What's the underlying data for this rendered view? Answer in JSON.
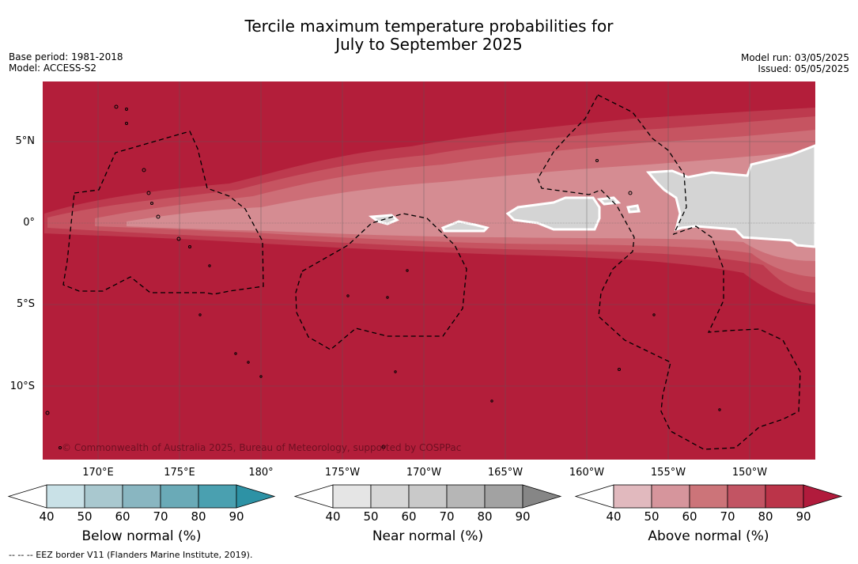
{
  "title": {
    "line1": "Tercile maximum temperature probabilities for",
    "line2": "July to September 2025"
  },
  "meta": {
    "base_period": "Base period: 1981-2018",
    "model": "Model: ACCESS-S2",
    "model_run": "Model run: 03/05/2025",
    "issued": "Issued: 05/05/2025"
  },
  "map": {
    "lat_labels": [
      "5°N",
      "0°",
      "5°S",
      "10°S"
    ],
    "lon_labels": [
      "170°E",
      "175°E",
      "180°",
      "175°W",
      "170°W",
      "165°W",
      "160°W",
      "155°W",
      "150°W"
    ],
    "copyright": "© Commonwealth of Australia 2025, Bureau of Meteorology, supported by COSPPac",
    "colors": {
      "above_90": "#b31e3a",
      "above_80": "#bd3a4e",
      "above_70": "#c65461",
      "above_60": "#cd6e77",
      "above_50": "#d58c92",
      "near_normal": "#d4d4d4"
    }
  },
  "colorbars": [
    {
      "label": "Below normal (%)",
      "ticks": [
        "40",
        "50",
        "60",
        "70",
        "80",
        "90"
      ],
      "colors": [
        "#ffffff",
        "#c9e1e7",
        "#a9c8cf",
        "#89b6c1",
        "#6aaab7",
        "#4aa0b0",
        "#2d92a5"
      ]
    },
    {
      "label": "Near normal (%)",
      "ticks": [
        "40",
        "50",
        "60",
        "70",
        "80",
        "90"
      ],
      "colors": [
        "#ffffff",
        "#e5e5e5",
        "#d6d6d6",
        "#c9c9c9",
        "#b6b6b6",
        "#a2a2a2",
        "#868686"
      ]
    },
    {
      "label": "Above normal (%)",
      "ticks": [
        "40",
        "50",
        "60",
        "70",
        "80",
        "90"
      ],
      "colors": [
        "#ffffff",
        "#e1b9be",
        "#d6959c",
        "#cc7479",
        "#c25463",
        "#bb3449",
        "#b11b3c"
      ]
    }
  ],
  "footer": {
    "eez_note": "-- -- -- EEZ border V11 (Flanders Marine Institute, 2019)."
  }
}
